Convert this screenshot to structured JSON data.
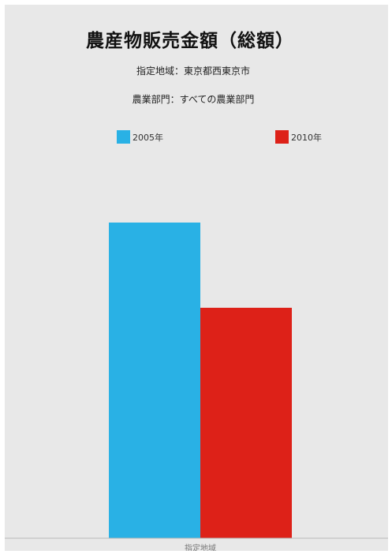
{
  "chart_data": {
    "type": "bar",
    "title": "農産物販売金額（総額）",
    "subtitles": [
      "指定地域：東京都西東京市",
      "農業部門：すべての農業部門"
    ],
    "categories": [
      "指定地域"
    ],
    "series": [
      {
        "name": "2005年",
        "color": "#29b1e5",
        "values": [
          100
        ]
      },
      {
        "name": "2010年",
        "color": "#dd2118",
        "values": [
          73
        ]
      }
    ],
    "ylim": [
      0,
      125
    ],
    "grid": false,
    "legend_position": "top"
  }
}
